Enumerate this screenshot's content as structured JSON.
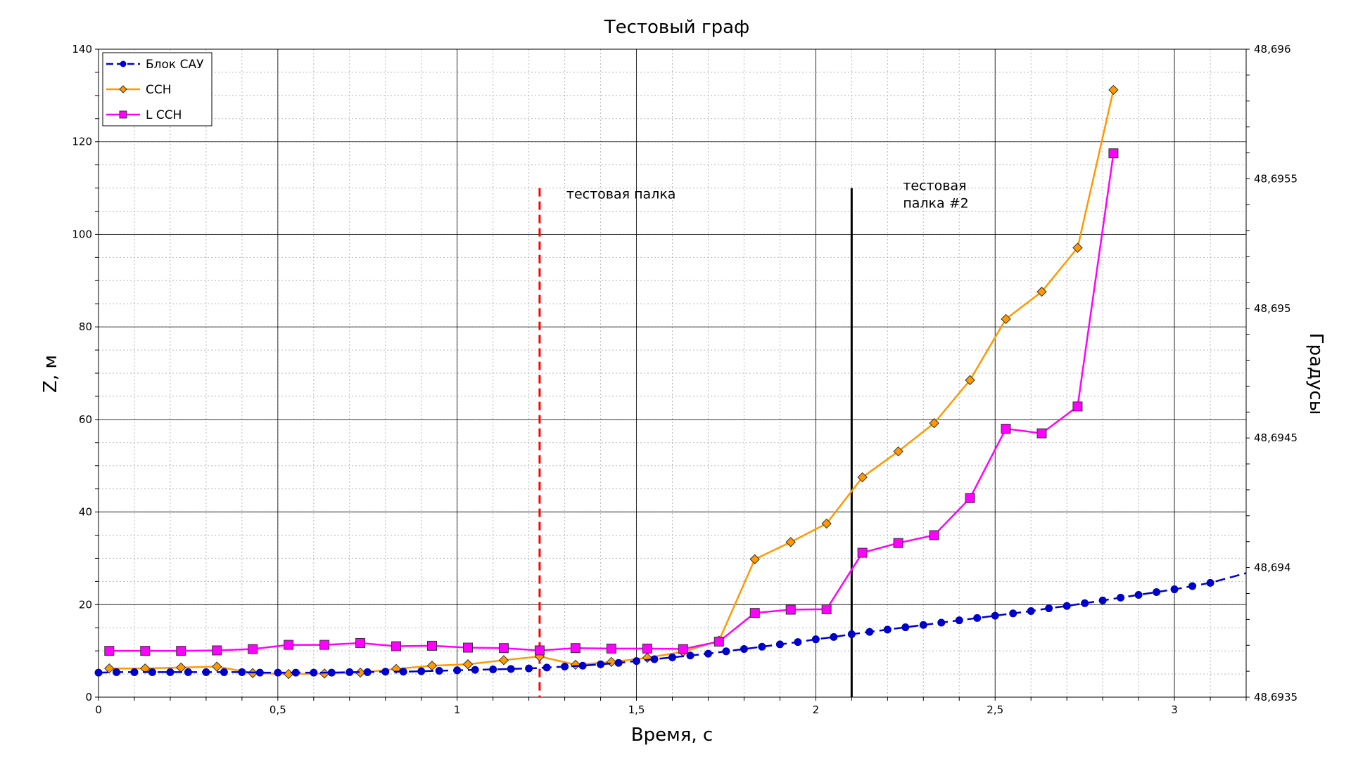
{
  "chart_data": {
    "type": "line",
    "title": "Тестовый граф",
    "xlabel": "Время, с",
    "ylabel": "Z, м",
    "y2label": "Градусы",
    "xlim": [
      0,
      3.2
    ],
    "ylim": [
      0,
      140
    ],
    "y2lim": [
      48.6935,
      48.696
    ],
    "x_ticks": [
      {
        "v": 0,
        "label": "0"
      },
      {
        "v": 0.5,
        "label": "0,5"
      },
      {
        "v": 1,
        "label": "1"
      },
      {
        "v": 1.5,
        "label": "1,5"
      },
      {
        "v": 2,
        "label": "2"
      },
      {
        "v": 2.5,
        "label": "2,5"
      },
      {
        "v": 3,
        "label": "3"
      }
    ],
    "y_ticks": [
      {
        "v": 0,
        "label": "0"
      },
      {
        "v": 20,
        "label": "20"
      },
      {
        "v": 40,
        "label": "40"
      },
      {
        "v": 60,
        "label": "60"
      },
      {
        "v": 80,
        "label": "80"
      },
      {
        "v": 100,
        "label": "100"
      },
      {
        "v": 120,
        "label": "120"
      },
      {
        "v": 140,
        "label": "140"
      }
    ],
    "y2_ticks": [
      {
        "v": 48.6935,
        "label": "48,6935"
      },
      {
        "v": 48.694,
        "label": "48,694"
      },
      {
        "v": 48.6945,
        "label": "48,6945"
      },
      {
        "v": 48.695,
        "label": "48,695"
      },
      {
        "v": 48.6955,
        "label": "48,6955"
      },
      {
        "v": 48.696,
        "label": "48,696"
      }
    ],
    "grid": true,
    "legend_position": "top-left",
    "series": [
      {
        "name": "Блок САУ",
        "color": "#0000cc",
        "dash": "dashed",
        "marker": "circle",
        "x": [
          0,
          0.05,
          0.1,
          0.15,
          0.2,
          0.25,
          0.3,
          0.35,
          0.4,
          0.45,
          0.5,
          0.55,
          0.6,
          0.65,
          0.7,
          0.75,
          0.8,
          0.85,
          0.9,
          0.95,
          1.0,
          1.05,
          1.1,
          1.15,
          1.2,
          1.25,
          1.3,
          1.35,
          1.4,
          1.45,
          1.5,
          1.55,
          1.6,
          1.65,
          1.7,
          1.75,
          1.8,
          1.85,
          1.9,
          1.95,
          2.0,
          2.05,
          2.1,
          2.15,
          2.2,
          2.25,
          2.3,
          2.35,
          2.4,
          2.45,
          2.5,
          2.55,
          2.6,
          2.65,
          2.7,
          2.75,
          2.8,
          2.85,
          2.9,
          2.95,
          3.0,
          3.05,
          3.1,
          3.2
        ],
        "y": [
          5.3,
          5.4,
          5.4,
          5.4,
          5.4,
          5.4,
          5.4,
          5.4,
          5.4,
          5.3,
          5.3,
          5.3,
          5.3,
          5.3,
          5.4,
          5.4,
          5.5,
          5.5,
          5.6,
          5.7,
          5.8,
          5.9,
          6.0,
          6.1,
          6.2,
          6.4,
          6.6,
          6.8,
          7.1,
          7.4,
          7.8,
          8.2,
          8.6,
          9.0,
          9.4,
          9.9,
          10.4,
          10.9,
          11.4,
          11.9,
          12.5,
          13.0,
          13.6,
          14.1,
          14.6,
          15.1,
          15.6,
          16.1,
          16.6,
          17.1,
          17.6,
          18.1,
          18.6,
          19.2,
          19.7,
          20.3,
          20.9,
          21.5,
          22.1,
          22.7,
          23.3,
          24.0,
          24.7,
          26.8
        ]
      },
      {
        "name": "ССН",
        "color": "#ff9900",
        "marker": "diamond",
        "x": [
          0.03,
          0.13,
          0.23,
          0.33,
          0.43,
          0.53,
          0.63,
          0.73,
          0.83,
          0.93,
          1.03,
          1.13,
          1.23,
          1.33,
          1.43,
          1.53,
          1.63,
          1.73,
          1.83,
          1.93,
          2.03,
          2.13,
          2.23,
          2.33,
          2.43,
          2.53,
          2.63,
          2.73,
          2.83
        ],
        "y": [
          6.2,
          6.2,
          6.4,
          6.6,
          5.2,
          5.0,
          5.1,
          5.3,
          6.1,
          6.8,
          7.1,
          8.0,
          8.8,
          7.0,
          7.6,
          8.5,
          9.8,
          12.2,
          29.8,
          33.5,
          37.5,
          47.5,
          53.1,
          59.2,
          68.5,
          81.7,
          87.6,
          97.1,
          131.2
        ]
      },
      {
        "name": "L ССН",
        "color": "#ff00ff",
        "marker": "square",
        "x": [
          0.03,
          0.13,
          0.23,
          0.33,
          0.43,
          0.53,
          0.63,
          0.73,
          0.83,
          0.93,
          1.03,
          1.13,
          1.23,
          1.33,
          1.43,
          1.53,
          1.63,
          1.73,
          1.83,
          1.93,
          2.03,
          2.13,
          2.23,
          2.33,
          2.43,
          2.53,
          2.63,
          2.73,
          2.83
        ],
        "y": [
          10.0,
          10.0,
          10.0,
          10.1,
          10.4,
          11.3,
          11.3,
          11.7,
          11.0,
          11.1,
          10.7,
          10.6,
          10.1,
          10.6,
          10.5,
          10.5,
          10.4,
          12.0,
          18.2,
          18.9,
          19.0,
          31.2,
          33.3,
          35.0,
          43.0,
          58.0,
          57.0,
          62.8,
          117.5
        ]
      }
    ],
    "annotations": [
      {
        "x": 1.23,
        "text": "тестовая палка",
        "color": "#ff0000",
        "dash": "dashed",
        "y_top": 110
      },
      {
        "x": 2.1,
        "text": "тестовая палка #2",
        "color": "#000000",
        "dash": "solid",
        "y_top": 110
      }
    ]
  }
}
